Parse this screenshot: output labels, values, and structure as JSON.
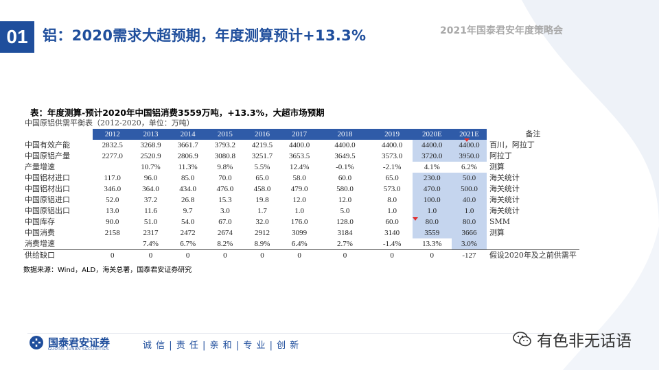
{
  "header": {
    "slide_number": "01",
    "title": "铝：2020需求大超预期，年度测算预计+13.3%",
    "conference": "2021年国泰君安年度策略会"
  },
  "caption": "表：年度测算-预计2020年中国铝消费3559万吨，+13.3%，大超市场预期",
  "table": {
    "title": "中国原铝供需平衡表（2012-2020，单位：万吨）",
    "columns": [
      "2012",
      "2013",
      "2014",
      "2015",
      "2016",
      "2017",
      "2018",
      "2019",
      "2020E",
      "2021E"
    ],
    "note_header": "备注",
    "rows": [
      {
        "label": "中国有效产能",
        "values": [
          "2832.5",
          "3268.9",
          "3661.7",
          "3793.2",
          "4219.5",
          "4400.0",
          "4400.0",
          "4400.0",
          "4400.0",
          "4400.0"
        ],
        "note": "百川，阿拉丁"
      },
      {
        "label": "中国原铝产量",
        "values": [
          "2277.0",
          "2520.9",
          "2806.9",
          "3080.8",
          "3251.7",
          "3653.5",
          "3649.5",
          "3573.0",
          "3720.0",
          "3950.0"
        ],
        "note": "阿拉丁"
      },
      {
        "label": "产量增速",
        "values": [
          "",
          "10.7%",
          "11.3%",
          "9.8%",
          "5.5%",
          "12.4%",
          "-0.1%",
          "-2.1%",
          "4.1%",
          "6.2%"
        ],
        "note": "测算"
      },
      {
        "label": "中国铝材进口",
        "values": [
          "117.0",
          "96.0",
          "85.0",
          "70.0",
          "65.0",
          "58.0",
          "60.0",
          "65.0",
          "230.0",
          "50.0"
        ],
        "note": "海关统计"
      },
      {
        "label": "中国铝材出口",
        "values": [
          "346.0",
          "364.0",
          "434.0",
          "476.0",
          "458.0",
          "479.0",
          "580.0",
          "573.0",
          "470.0",
          "500.0"
        ],
        "note": "海关统计"
      },
      {
        "label": "中国原铝进口",
        "values": [
          "52.0",
          "37.2",
          "26.8",
          "15.3",
          "19.8",
          "12.0",
          "12.0",
          "8.0",
          "100.0",
          "40.0"
        ],
        "note": "海关统计"
      },
      {
        "label": "中国原铝出口",
        "values": [
          "13.0",
          "11.6",
          "9.7",
          "3.0",
          "1.7",
          "1.0",
          "5.0",
          "1.0",
          "1.0",
          "1.0"
        ],
        "note": "海关统计"
      },
      {
        "label": "中国库存",
        "values": [
          "90.0",
          "51.0",
          "54.0",
          "67.0",
          "32.0",
          "176.0",
          "128.0",
          "60.0",
          "80.0",
          "80.0"
        ],
        "note": "SMM"
      },
      {
        "label": "中国消费",
        "values": [
          "2158",
          "2317",
          "2472",
          "2674",
          "2912",
          "3099",
          "3184",
          "3140",
          "3559",
          "3666"
        ],
        "note": "测算"
      },
      {
        "label": "消费增速",
        "values": [
          "",
          "7.4%",
          "6.7%",
          "8.2%",
          "8.9%",
          "6.4%",
          "2.7%",
          "-1.4%",
          "13.3%",
          "3.0%"
        ],
        "note": ""
      },
      {
        "label": "供给缺口",
        "values": [
          "0",
          "0",
          "0",
          "0",
          "0",
          "0",
          "0",
          "0",
          "0",
          "-127"
        ],
        "note": "假设2020年及之前供需平"
      }
    ]
  },
  "source": "数据来源：Wind，ALD，海关总署，国泰君安证券研究",
  "footer": {
    "logo_name": "国泰君安证券",
    "logo_en": "GUOTAI JUNAN SECURITIES",
    "slogan": "诚 信 | 责 任 | 亲 和 | 专 业 | 创 新",
    "wechat_name": "有色非无话语"
  },
  "colors": {
    "brand": "#1f4e9c",
    "header_bg": "#2f5ba8",
    "highlight": "#c5d5ee"
  }
}
